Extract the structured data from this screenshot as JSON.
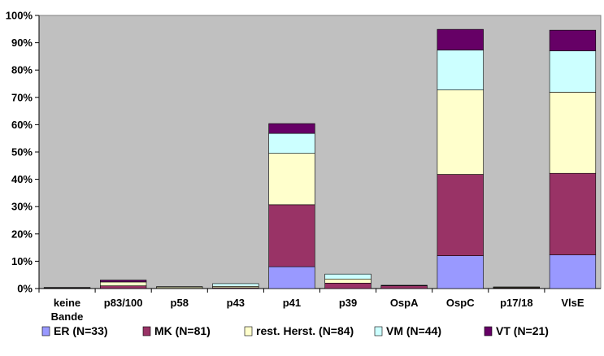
{
  "chart_data": {
    "type": "bar",
    "stacked": true,
    "categories": [
      "keine Bande",
      "p83/100",
      "p58",
      "p43",
      "p41",
      "p39",
      "OspA",
      "OspC",
      "p17/18",
      "VlsE"
    ],
    "series": [
      {
        "name": "ER (N=33)",
        "color": "#9999ff",
        "values": [
          0.0,
          0.0,
          0.0,
          0.0,
          8.0,
          0.0,
          0.0,
          12.0,
          0.0,
          12.3
        ]
      },
      {
        "name": "MK (N=81)",
        "color": "#993366",
        "values": [
          0.2,
          1.0,
          0.1,
          0.3,
          22.7,
          2.0,
          1.0,
          29.8,
          0.2,
          29.9
        ]
      },
      {
        "name": "rest. Herst. (N=84)",
        "color": "#ffffcc",
        "values": [
          0.1,
          1.4,
          0.5,
          0.5,
          18.8,
          1.5,
          0.0,
          30.9,
          0.3,
          29.7
        ]
      },
      {
        "name": "VM (N=44)",
        "color": "#ccffff",
        "values": [
          0.1,
          0.0,
          0.1,
          1.0,
          7.3,
          1.8,
          0.0,
          14.6,
          0.1,
          15.1
        ]
      },
      {
        "name": "VT (N=21)",
        "color": "#660066",
        "values": [
          0.0,
          0.7,
          0.0,
          0.0,
          3.6,
          0.0,
          0.2,
          7.6,
          0.0,
          7.6
        ]
      }
    ],
    "yticks": [
      "0%",
      "10%",
      "20%",
      "30%",
      "40%",
      "50%",
      "60%",
      "70%",
      "80%",
      "90%",
      "100%"
    ],
    "ylim": [
      0,
      100
    ],
    "grid": false,
    "legend": "bottom",
    "title": "",
    "xlabel": "",
    "ylabel": ""
  }
}
